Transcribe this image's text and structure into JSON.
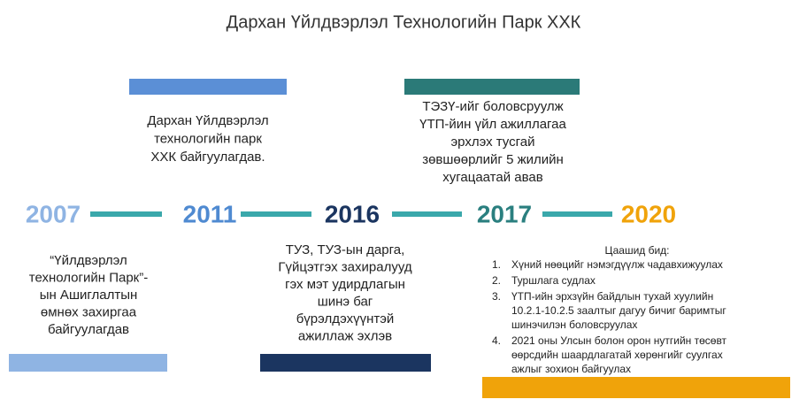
{
  "title": "Дархан Үйлдвэрлэл Технологийн Парк ХХК",
  "events": [
    {
      "year": "2007",
      "lines": [
        "“Үйлдвэрлэл",
        "технологийн Парк”-",
        "ын Ашиглалтын",
        "өмнөх захиргаа",
        "байгуулагдав"
      ]
    },
    {
      "year": "2011",
      "lines": [
        "Дархан Үйлдвэрлэл",
        "технологийн парк",
        "ХХК байгуулагдав."
      ]
    },
    {
      "year": "2016",
      "lines": [
        "ТУЗ, ТУЗ-ын дарга,",
        "Гүйцэтгэх захиралууд",
        "гэх мэт удирдлагын",
        "шинэ баг",
        "бүрэлдэхүүнтэй",
        "ажиллаж эхлэв"
      ]
    },
    {
      "year": "2017",
      "lines": [
        "ТЭЗҮ-ийг боловсруулж",
        "ҮТП-йин үйл ажиллагаа",
        "эрхлэх тусгай",
        "зөвшөөрлийг 5 жилийн",
        "хугацаатай авав"
      ]
    },
    {
      "year": "2020",
      "intro": "Цаашид бид:",
      "items": [
        {
          "marker": "1.",
          "lines": [
            "Хүний нөөцийг нэмэгдүүлж чадавхижуулах"
          ]
        },
        {
          "marker": "2.",
          "lines": [
            "Туршлага судлах"
          ]
        },
        {
          "marker": "3.",
          "lines": [
            "ҮТП-ийн эрхзүйн байдлын тухай хуулийн",
            "10.2.1-10.2.5 заалтыг дагуу бичиг баримтыг",
            "шинэчилэн боловсруулах"
          ]
        },
        {
          "marker": "4.",
          "lines": [
            "2021 оны Улсын болон орон нутгийн төсөвт",
            "өөрсдийн шаардлагатай хөрөнгийг суулгах",
            "ажлыг зохион байгуулах"
          ]
        }
      ]
    }
  ]
}
